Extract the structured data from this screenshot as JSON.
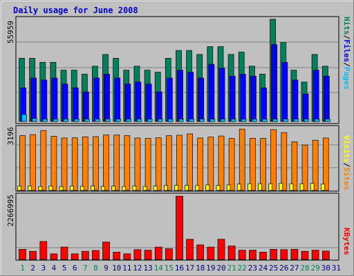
{
  "title": "Daily usage for June 2008",
  "colors": {
    "hits": "#00805c",
    "files": "#0000ff",
    "pages": "#00c0ff",
    "visits": "#ff8000",
    "sites": "#ffff00",
    "kbytes": "#ff0000",
    "weekend_label": "#00805c",
    "weekday_label": "#000080"
  },
  "chart_data": [
    {
      "type": "bar",
      "panel": "hits-files-pages",
      "axis_max_label": "55959",
      "ylim": [
        0,
        55959
      ],
      "legend_placement": "right",
      "legend": [
        "Pages",
        "/",
        "Files",
        "/",
        "Hits"
      ],
      "categories": [
        "1",
        "2",
        "3",
        "4",
        "5",
        "6",
        "7",
        "8",
        "9",
        "10",
        "11",
        "12",
        "13",
        "14",
        "15",
        "16",
        "17",
        "18",
        "19",
        "20",
        "21",
        "22",
        "23",
        "24",
        "25",
        "26",
        "27",
        "28",
        "29",
        "30",
        "31"
      ],
      "series": [
        {
          "name": "Hits",
          "values": [
            34600,
            34600,
            32400,
            32400,
            28100,
            28100,
            25900,
            30300,
            36700,
            34600,
            28100,
            30300,
            28100,
            27000,
            34600,
            38900,
            38900,
            36700,
            41000,
            41000,
            36700,
            38000,
            30300,
            25900,
            56000,
            43200,
            28100,
            21600,
            36700,
            30300,
            0
          ]
        },
        {
          "name": "Files",
          "values": [
            18400,
            23800,
            22700,
            23800,
            20500,
            18400,
            16200,
            23800,
            25900,
            23800,
            20500,
            21600,
            20500,
            16200,
            23800,
            28100,
            27000,
            23800,
            31300,
            29200,
            24800,
            25900,
            24800,
            18400,
            42100,
            32400,
            22700,
            15100,
            28100,
            24800,
            0
          ]
        },
        {
          "name": "Pages",
          "values": [
            3800,
            1600,
            1300,
            1300,
            1300,
            1300,
            1300,
            1300,
            1300,
            1300,
            1300,
            1300,
            1300,
            1300,
            1300,
            1300,
            1300,
            1300,
            1300,
            1300,
            1300,
            1300,
            1300,
            1300,
            1300,
            1300,
            1300,
            1300,
            1300,
            1300,
            0
          ]
        }
      ]
    },
    {
      "type": "bar",
      "panel": "visits-sites",
      "axis_max_label": "3196",
      "ylim": [
        0,
        3196
      ],
      "legend_placement": "right",
      "legend": [
        "Sites",
        "/",
        "Visits"
      ],
      "categories": [
        "1",
        "2",
        "3",
        "4",
        "5",
        "6",
        "7",
        "8",
        "9",
        "10",
        "11",
        "12",
        "13",
        "14",
        "15",
        "16",
        "17",
        "18",
        "19",
        "20",
        "21",
        "22",
        "23",
        "24",
        "25",
        "26",
        "27",
        "28",
        "29",
        "30",
        "31"
      ],
      "series": [
        {
          "name": "Visits",
          "values": [
            2760,
            2810,
            3020,
            2730,
            2640,
            2650,
            2700,
            2710,
            2790,
            2790,
            2760,
            2640,
            2620,
            2650,
            2760,
            2780,
            2850,
            2640,
            2690,
            2740,
            2620,
            3090,
            2630,
            2620,
            3060,
            2910,
            2450,
            2290,
            2530,
            2640,
            0
          ]
        },
        {
          "name": "Sites",
          "values": [
            220,
            220,
            200,
            220,
            200,
            220,
            200,
            220,
            200,
            220,
            200,
            220,
            200,
            220,
            250,
            260,
            260,
            250,
            280,
            250,
            280,
            320,
            340,
            340,
            340,
            360,
            340,
            340,
            360,
            320,
            0
          ]
        }
      ]
    },
    {
      "type": "bar",
      "panel": "kbytes",
      "axis_max_label": "2266995",
      "ylim": [
        0,
        2266995
      ],
      "legend_placement": "right",
      "legend": [
        "KBytes"
      ],
      "categories": [
        "1",
        "2",
        "3",
        "4",
        "5",
        "6",
        "7",
        "8",
        "9",
        "10",
        "11",
        "12",
        "13",
        "14",
        "15",
        "16",
        "17",
        "18",
        "19",
        "20",
        "21",
        "22",
        "23",
        "24",
        "25",
        "26",
        "27",
        "28",
        "29",
        "30",
        "31"
      ],
      "series": [
        {
          "name": "KBytes",
          "values": [
            360000,
            290000,
            640000,
            200000,
            440000,
            200000,
            290000,
            320000,
            620000,
            260000,
            200000,
            350000,
            330000,
            440000,
            380000,
            2260000,
            720000,
            520000,
            440000,
            720000,
            480000,
            330000,
            330000,
            260000,
            360000,
            350000,
            360000,
            290000,
            330000,
            300000,
            0
          ]
        }
      ]
    }
  ]
}
